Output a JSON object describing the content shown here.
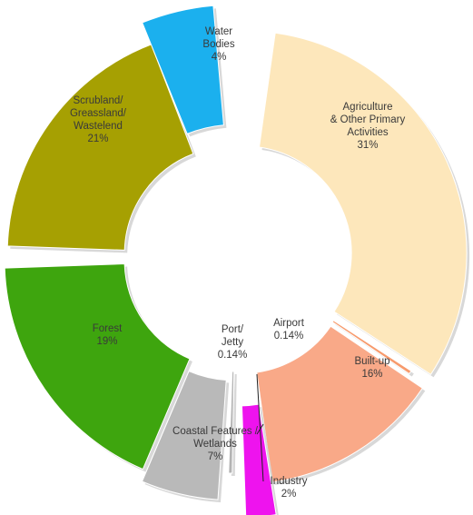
{
  "chart_data": {
    "type": "pie",
    "title": "",
    "categories": [
      "Agriculture & Other Primary Activities",
      "Airport",
      "Built-up",
      "Industry",
      "Port/ Jetty",
      "Coastal Features / Wetlands",
      "Forest",
      "Scrubland/ Greassland/ Wastelend",
      "Water Bodies"
    ],
    "values": [
      31,
      0.14,
      16,
      2,
      0.14,
      7,
      19,
      21,
      4
    ],
    "colors": [
      "#fde7bb",
      "#f79a6c",
      "#f9a988",
      "#ee13ee",
      "#b3b3b3",
      "#b9b9b9",
      "#3ea50e",
      "#a6a002",
      "#1bb0ee"
    ],
    "donut": true,
    "exploded": true,
    "slices": [
      {
        "label_lines": [
          "Agriculture",
          "& Other Primary",
          "Activities"
        ],
        "value_text": "31%"
      },
      {
        "label_lines": [
          "Airport"
        ],
        "value_text": "0.14%"
      },
      {
        "label_lines": [
          "Built-up"
        ],
        "value_text": "16%"
      },
      {
        "label_lines": [
          "Industry"
        ],
        "value_text": "2%"
      },
      {
        "label_lines": [
          "Port/",
          "Jetty"
        ],
        "value_text": "0.14%"
      },
      {
        "label_lines": [
          "Coastal Features /",
          "Wetlands"
        ],
        "value_text": "7%"
      },
      {
        "label_lines": [
          "Forest"
        ],
        "value_text": "19%"
      },
      {
        "label_lines": [
          "Scrubland/",
          "Greassland/",
          "Wastelend"
        ],
        "value_text": "21%"
      },
      {
        "label_lines": [
          "Water",
          "Bodies"
        ],
        "value_text": "4%"
      }
    ]
  }
}
